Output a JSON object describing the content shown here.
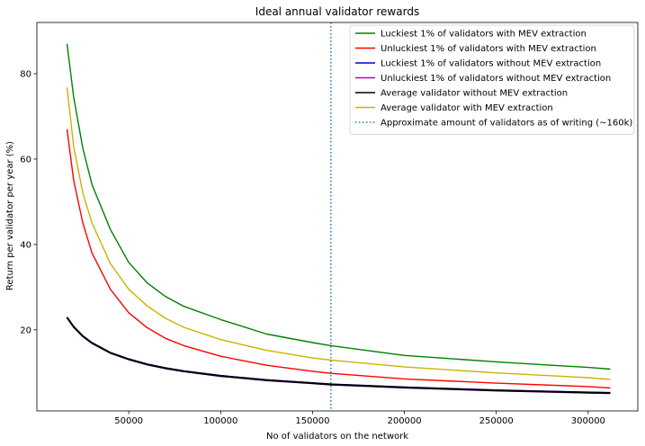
{
  "chart_data": {
    "type": "line",
    "title": "Ideal annual validator rewards",
    "xlabel": "No of validators on the network",
    "ylabel": "Return per validator per year (%)",
    "xlim": [
      0,
      327000
    ],
    "ylim": [
      1,
      92
    ],
    "xticks": [
      50000,
      100000,
      150000,
      200000,
      250000,
      300000
    ],
    "yticks": [
      20,
      40,
      60,
      80
    ],
    "grid": false,
    "legend_position": "top-right",
    "x": [
      16384,
      20000,
      25000,
      30000,
      40000,
      50000,
      60000,
      70000,
      80000,
      100000,
      125000,
      150000,
      160000,
      200000,
      250000,
      300000,
      312000
    ],
    "series": [
      {
        "name": "Luckiest 1% of validators with MEV extraction",
        "color": "#008000",
        "style": "solid",
        "values": [
          87.0,
          74.5,
          62.5,
          54.0,
          43.5,
          35.8,
          31.0,
          27.8,
          25.5,
          22.4,
          19.0,
          17.0,
          16.3,
          14.0,
          12.5,
          11.2,
          10.8
        ]
      },
      {
        "name": "Unluckiest 1% of validators with MEV extraction",
        "color": "#ff0000",
        "style": "solid",
        "values": [
          67.0,
          55.0,
          45.0,
          38.0,
          29.5,
          24.0,
          20.5,
          18.0,
          16.3,
          13.8,
          11.7,
          10.3,
          9.8,
          8.5,
          7.5,
          6.7,
          6.4
        ]
      },
      {
        "name": "Luckiest 1% of validators without MEV extraction",
        "color": "#0000cc",
        "style": "solid",
        "values": [
          23.0,
          20.8,
          18.6,
          17.0,
          14.7,
          13.2,
          12.0,
          11.1,
          10.4,
          9.3,
          8.3,
          7.6,
          7.3,
          6.6,
          5.9,
          5.4,
          5.3
        ]
      },
      {
        "name": "Unluckiest 1% of validators without MEV extraction",
        "color": "#bf00bf",
        "style": "solid",
        "values": [
          22.8,
          20.6,
          18.4,
          16.8,
          14.5,
          13.0,
          11.8,
          10.9,
          10.2,
          9.1,
          8.1,
          7.4,
          7.1,
          6.4,
          5.7,
          5.2,
          5.1
        ]
      },
      {
        "name": "Average validator without MEV extraction",
        "color": "#000000",
        "style": "solid",
        "values": [
          22.9,
          20.7,
          18.5,
          16.9,
          14.6,
          13.1,
          11.9,
          11.0,
          10.3,
          9.2,
          8.2,
          7.5,
          7.2,
          6.5,
          5.8,
          5.3,
          5.2
        ]
      },
      {
        "name": "Average validator with MEV extraction",
        "color": "#c8b400",
        "style": "solid",
        "values": [
          76.8,
          63.0,
          52.0,
          45.0,
          35.5,
          29.5,
          25.6,
          22.7,
          20.6,
          17.7,
          15.2,
          13.4,
          12.9,
          11.3,
          9.9,
          8.8,
          8.4
        ]
      },
      {
        "name": "Approximate amount of validators as of writing (~160k)",
        "color": "#1f77b4",
        "style": "dotted",
        "vline_x": 160000
      }
    ]
  }
}
